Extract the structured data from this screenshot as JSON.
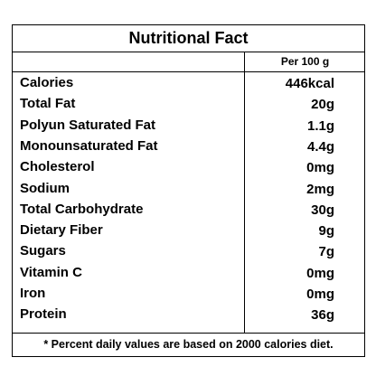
{
  "table": {
    "title": "Nutritional Fact",
    "header": "Per 100 g",
    "rows": [
      [
        "Calories",
        "446kcal"
      ],
      [
        "Total Fat",
        "20g"
      ],
      [
        "Polyun Saturated Fat",
        "1.1g"
      ],
      [
        "Monounsaturated Fat",
        "4.4g"
      ],
      [
        "Cholesterol",
        "0mg"
      ],
      [
        "Sodium",
        "2mg"
      ],
      [
        "Total Carbohydrate",
        "30g"
      ],
      [
        "Dietary Fiber",
        "9g"
      ],
      [
        "Sugars",
        "7g"
      ],
      [
        "Vitamin C",
        "0mg"
      ],
      [
        "Iron",
        "0mg"
      ],
      [
        "Protein",
        "36g"
      ]
    ],
    "footnote": "* Percent daily values are based on 2000 calories diet."
  }
}
